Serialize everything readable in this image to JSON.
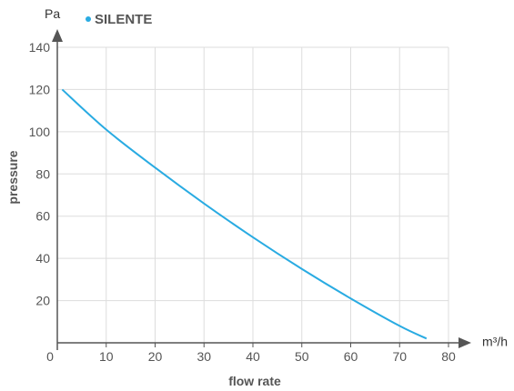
{
  "chart_data": {
    "type": "line",
    "title": "",
    "xlabel": "flow rate",
    "ylabel": "pressure",
    "x_unit": "m³/h",
    "y_unit": "Pa",
    "xlim": [
      0,
      80
    ],
    "ylim": [
      0,
      140
    ],
    "x_ticks": [
      "0",
      "10",
      "20",
      "30",
      "40",
      "50",
      "60",
      "70",
      "80"
    ],
    "y_ticks": [
      "20",
      "40",
      "60",
      "80",
      "100",
      "120",
      "140"
    ],
    "grid": true,
    "legend_position": "top-left",
    "series": [
      {
        "name": "SILENTE",
        "color": "#29abe2",
        "x": [
          1,
          10,
          20,
          30,
          40,
          50,
          60,
          70,
          75.5
        ],
        "y": [
          120,
          101,
          83,
          66,
          50,
          35,
          21,
          8,
          2
        ]
      }
    ]
  },
  "colors": {
    "axis": "#555555",
    "grid": "#dddddd",
    "series": "#29abe2"
  }
}
